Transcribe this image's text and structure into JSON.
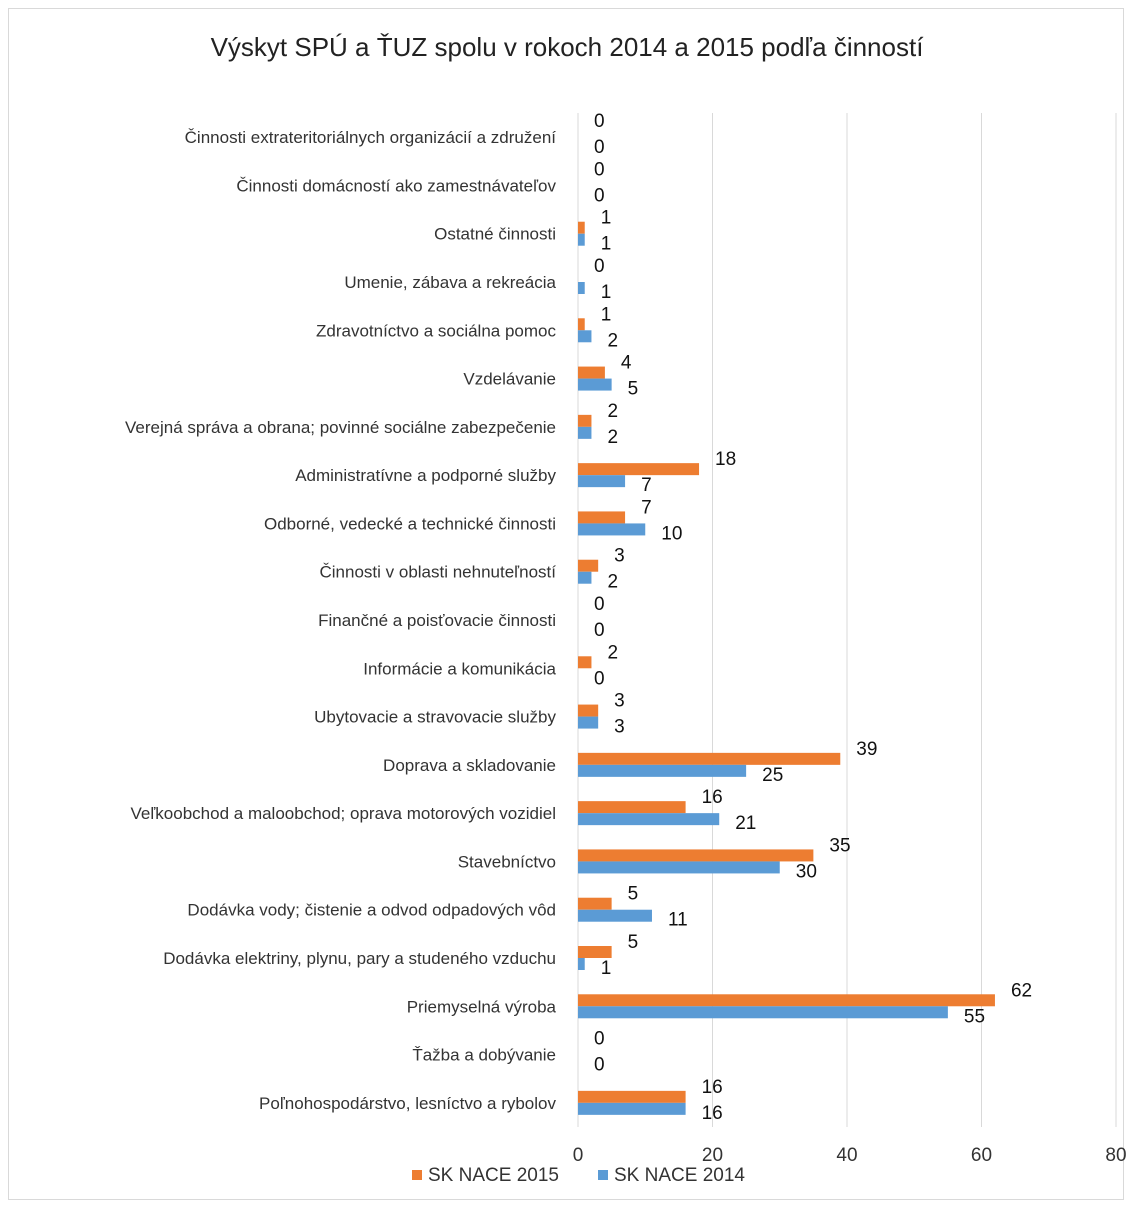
{
  "chart_data": {
    "type": "bar",
    "orientation": "horizontal",
    "title": "Výskyt SPÚ a ŤUZ spolu v rokoch 2014 a 2015 podľa činností",
    "xlabel": "",
    "ylabel": "",
    "xlim": [
      0,
      80
    ],
    "x_ticks": [
      "0",
      "20",
      "40",
      "60",
      "80"
    ],
    "grid": "vertical",
    "legend_position": "bottom",
    "categories": [
      "Činnosti extrateritoriálnych organizácií a združení",
      "Činnosti domácností ako zamestnávateľov",
      "Ostatné činnosti",
      "Umenie, zábava a rekreácia",
      "Zdravotníctvo a sociálna pomoc",
      "Vzdelávanie",
      "Verejná správa a obrana; povinné sociálne zabezpečenie",
      "Administratívne a podporné služby",
      "Odborné, vedecké a technické činnosti",
      "Činnosti v oblasti nehnuteľností",
      "Finančné a poisťovacie činnosti",
      "Informácie a komunikácia",
      "Ubytovacie a stravovacie služby",
      "Doprava a skladovanie",
      "Veľkoobchod a maloobchod; oprava motorových vozidiel",
      "Stavebníctvo",
      "Dodávka vody; čistenie a odvod odpadových vôd",
      "Dodávka elektriny, plynu, pary a studeného vzduchu",
      "Priemyselná výroba",
      "Ťažba a dobývanie",
      "Poľnohospodárstvo, lesníctvo a rybolov"
    ],
    "series": [
      {
        "name": "SK NACE 2015",
        "color": "#ed7d31",
        "values": [
          0,
          0,
          1,
          0,
          1,
          4,
          2,
          18,
          7,
          3,
          0,
          2,
          3,
          39,
          16,
          35,
          5,
          5,
          62,
          0,
          16
        ]
      },
      {
        "name": "SK NACE 2014",
        "color": "#5b9bd5",
        "values": [
          0,
          0,
          1,
          1,
          2,
          5,
          2,
          7,
          10,
          2,
          0,
          0,
          3,
          25,
          21,
          30,
          11,
          1,
          55,
          0,
          16
        ]
      }
    ]
  }
}
